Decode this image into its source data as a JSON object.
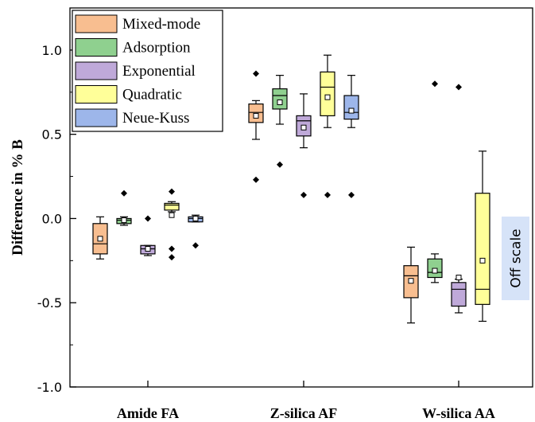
{
  "chart_data": {
    "type": "box",
    "ylabel": "Difference in % B",
    "ylim": [
      -1.0,
      1.25
    ],
    "yticks": [
      {
        "value": 1.0,
        "label": "1.0"
      },
      {
        "value": 0.5,
        "label": "0.5"
      },
      {
        "value": 0.0,
        "label": "0.0"
      },
      {
        "value": -0.5,
        "label": "-0.5"
      },
      {
        "value": -1.0,
        "label": "-1.0"
      }
    ],
    "categories": [
      "Amide FA",
      "Z-silica AF",
      "W-silica AA"
    ],
    "legend_position": "top-left",
    "series": [
      {
        "name": "Mixed-mode",
        "color": "#F8BE90",
        "boxes": [
          {
            "min": -0.24,
            "q1": -0.21,
            "median": -0.15,
            "q3": -0.03,
            "max": 0.01,
            "mean": -0.12,
            "outliers": []
          },
          {
            "min": 0.47,
            "q1": 0.57,
            "median": 0.63,
            "q3": 0.68,
            "max": 0.7,
            "mean": 0.61,
            "outliers": [
              0.86,
              0.23
            ]
          },
          {
            "min": -0.62,
            "q1": -0.47,
            "median": -0.34,
            "q3": -0.28,
            "max": -0.17,
            "mean": -0.37,
            "outliers": []
          }
        ]
      },
      {
        "name": "Adsorption",
        "color": "#8FD08F",
        "boxes": [
          {
            "min": -0.04,
            "q1": -0.03,
            "median": -0.01,
            "q3": 0.0,
            "max": 0.01,
            "mean": -0.01,
            "outliers": [
              0.15
            ]
          },
          {
            "min": 0.56,
            "q1": 0.65,
            "median": 0.73,
            "q3": 0.77,
            "max": 0.85,
            "mean": 0.69,
            "outliers": [
              0.32
            ]
          },
          {
            "min": -0.38,
            "q1": -0.35,
            "median": -0.32,
            "q3": -0.24,
            "max": -0.21,
            "mean": -0.31,
            "outliers": [
              0.8
            ]
          }
        ]
      },
      {
        "name": "Exponential",
        "color": "#BFA9D9",
        "boxes": [
          {
            "min": -0.22,
            "q1": -0.21,
            "median": -0.18,
            "q3": -0.16,
            "max": -0.16,
            "mean": -0.18,
            "outliers": [
              0.0
            ]
          },
          {
            "min": 0.42,
            "q1": 0.49,
            "median": 0.58,
            "q3": 0.61,
            "max": 0.74,
            "mean": 0.54,
            "outliers": [
              0.14
            ]
          },
          {
            "min": -0.56,
            "q1": -0.52,
            "median": -0.42,
            "q3": -0.38,
            "max": -0.36,
            "mean": -0.35,
            "outliers": [
              0.78
            ]
          }
        ]
      },
      {
        "name": "Quadratic",
        "color": "#FFFF99",
        "boxes": [
          {
            "min": 0.04,
            "q1": 0.05,
            "median": 0.08,
            "q3": 0.09,
            "max": 0.1,
            "mean": 0.02,
            "outliers": [
              0.16,
              -0.18,
              -0.23
            ]
          },
          {
            "min": 0.54,
            "q1": 0.61,
            "median": 0.78,
            "q3": 0.87,
            "max": 0.97,
            "mean": 0.72,
            "outliers": [
              0.14
            ]
          },
          {
            "min": -0.61,
            "q1": -0.51,
            "median": -0.42,
            "q3": 0.15,
            "max": 0.4,
            "mean": -0.25,
            "outliers": []
          }
        ]
      },
      {
        "name": "Neue-Kuss",
        "color": "#9DB6EA",
        "boxes": [
          {
            "min": -0.02,
            "q1": -0.02,
            "median": 0.0,
            "q3": 0.01,
            "max": 0.02,
            "mean": 0.0,
            "outliers": [
              -0.16
            ]
          },
          {
            "min": 0.54,
            "q1": 0.59,
            "median": 0.63,
            "q3": 0.73,
            "max": 0.85,
            "mean": 0.64,
            "outliers": [
              0.14
            ]
          },
          null
        ]
      }
    ],
    "annotations": [
      {
        "text": "Off scale",
        "category": "W-silica AA",
        "series": "Neue-Kuss"
      }
    ]
  },
  "colors": {
    "annotation_background": "#D6E3F8"
  }
}
